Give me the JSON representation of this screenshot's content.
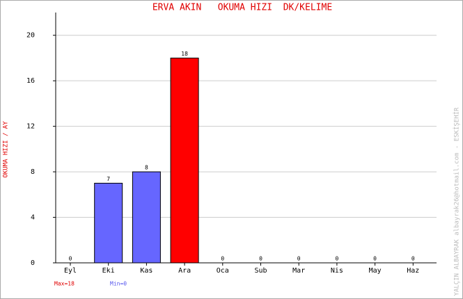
{
  "chart_data": {
    "type": "bar",
    "title": "ERVA AKIN   OKUMA HIZI  DK/KELIME",
    "y_label": "OKUMA HIZI / AY",
    "categories": [
      "Eyl",
      "Eki",
      "Kas",
      "Ara",
      "Oca",
      "Sub",
      "Mar",
      "Nis",
      "May",
      "Haz"
    ],
    "values": [
      0,
      7,
      8,
      18,
      0,
      0,
      0,
      0,
      0,
      0
    ],
    "colors": [
      "#6666ff",
      "#6666ff",
      "#6666ff",
      "#ff0000",
      "#6666ff",
      "#6666ff",
      "#6666ff",
      "#6666ff",
      "#6666ff",
      "#6666ff"
    ],
    "ylim": [
      0,
      22
    ],
    "yticks": [
      0,
      4,
      8,
      12,
      16,
      20
    ],
    "grid": true,
    "max_label": "Max=18",
    "min_label": "Min=0",
    "credit": "YALÇIN ALBAYRAK  albayrak26@hotmail.com - ESKİŞEHİR"
  }
}
